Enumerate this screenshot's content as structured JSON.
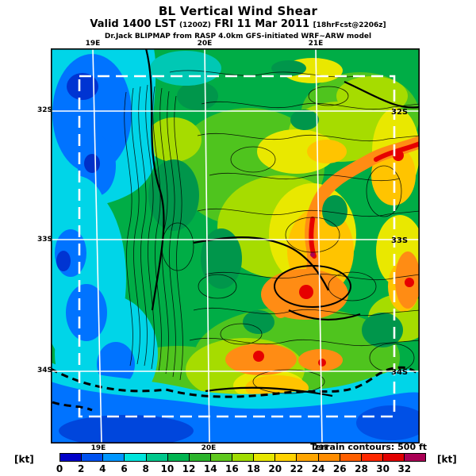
{
  "header": {
    "title": "BL Vertical Wind Shear",
    "valid_prefix": "Valid 1400 LST ",
    "valid_zulu": "(1200Z)",
    "valid_date": " FRI 11 Mar 2011 ",
    "valid_fcst": "[18hrFcst@2206z]",
    "model_line": "Dr.Jack BLIPMAP from RASP 4.0km GFS-initiated WRF~ARW model"
  },
  "map": {
    "top_labels": [
      "19E",
      "20E",
      "21E"
    ],
    "bottom_labels": [
      "19E",
      "20E",
      "21E"
    ],
    "left_labels": [
      "32S",
      "33S",
      "34S"
    ],
    "right_labels": [
      "32S",
      "33S",
      "34S"
    ],
    "terrain_note": "Terrain contours: 500 ft"
  },
  "colorbar": {
    "unit_left": "[kt]",
    "unit_right": "[kt]",
    "ticks": [
      "0",
      "2",
      "4",
      "6",
      "8",
      "10",
      "12",
      "14",
      "16",
      "18",
      "20",
      "22",
      "24",
      "26",
      "28",
      "30",
      "32"
    ],
    "colors": [
      "#0000c8",
      "#0052f0",
      "#0096ff",
      "#00e4dc",
      "#00c88c",
      "#00b450",
      "#2cb42c",
      "#5fc81e",
      "#a0dc00",
      "#e6e600",
      "#ffd200",
      "#ffa500",
      "#ff8c00",
      "#ff5f00",
      "#ff2800",
      "#e10000",
      "#aa0055"
    ]
  },
  "chart_data": {
    "type": "heatmap",
    "title": "BL Vertical Wind Shear",
    "subtitle": "Valid 1400 LST (1200Z) FRI 11 Mar 2011 [18hrFcst@2206z]",
    "source": "Dr.Jack BLIPMAP from RASP 4.0km GFS-initiated WRF~ARW model",
    "units": "kt",
    "scale_ticks": [
      0,
      2,
      4,
      6,
      8,
      10,
      12,
      14,
      16,
      18,
      20,
      22,
      24,
      26,
      28,
      30,
      32
    ],
    "scale_over_max_color": "#aa0055",
    "lon_ticks": [
      "19E",
      "20E",
      "21E"
    ],
    "lat_ticks": [
      "32S",
      "33S",
      "34S"
    ],
    "terrain_contour_interval_ft": 500,
    "grid_estimate_note": "coarse visual estimate of shear (kt); rows north to south (32S..34.8S), cols west to east (18.8E..21.3E)",
    "grid_estimate": [
      [
        4,
        2,
        10,
        12,
        12,
        18,
        14,
        12,
        12,
        12
      ],
      [
        2,
        6,
        12,
        14,
        10,
        12,
        14,
        16,
        12,
        12
      ],
      [
        6,
        4,
        14,
        10,
        12,
        14,
        20,
        24,
        18,
        16
      ],
      [
        8,
        6,
        12,
        10,
        14,
        16,
        26,
        22,
        20,
        18
      ],
      [
        6,
        4,
        10,
        16,
        12,
        18,
        28,
        18,
        20,
        16
      ],
      [
        4,
        6,
        12,
        14,
        16,
        22,
        24,
        18,
        14,
        12
      ],
      [
        6,
        10,
        14,
        12,
        18,
        20,
        16,
        18,
        12,
        10
      ],
      [
        10,
        16,
        12,
        18,
        22,
        26,
        20,
        14,
        10,
        8
      ],
      [
        8,
        12,
        16,
        14,
        12,
        16,
        12,
        8,
        6,
        6
      ],
      [
        4,
        4,
        8,
        6,
        6,
        4,
        4,
        4,
        4,
        4
      ]
    ]
  }
}
